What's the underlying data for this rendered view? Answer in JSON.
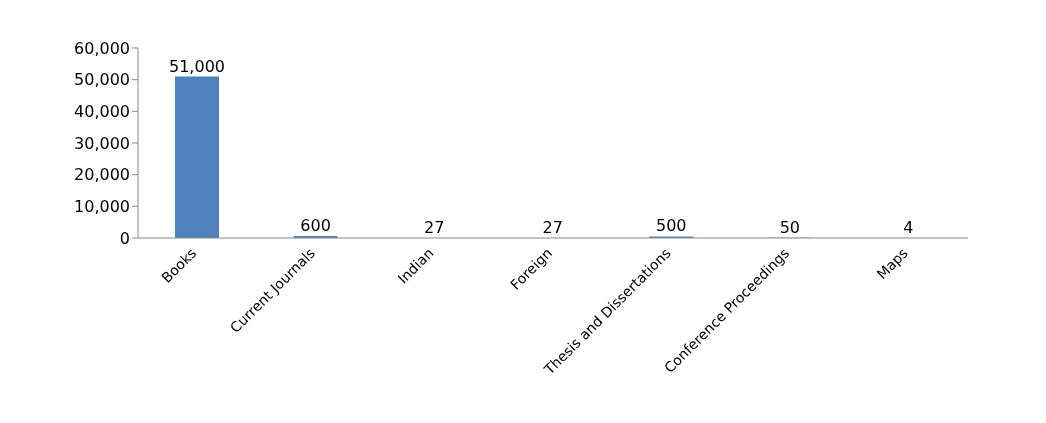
{
  "chart_data": {
    "type": "bar",
    "categories": [
      "Books",
      "Current Journals",
      "Indian",
      "Foreign",
      "Thesis and Dissertations",
      "Conference Proceedings",
      "Maps"
    ],
    "values": [
      51000,
      600,
      27,
      27,
      500,
      50,
      4
    ],
    "value_labels": [
      "51,000",
      "600",
      "27",
      "27",
      "500",
      "50",
      "4"
    ],
    "color": "#4f81bd",
    "ylim": [
      0,
      60000
    ],
    "yticks": [
      {
        "value": 0,
        "label": "0"
      },
      {
        "value": 10000,
        "label": "10,000"
      },
      {
        "value": 20000,
        "label": "20,000"
      },
      {
        "value": 30000,
        "label": "30,000"
      },
      {
        "value": 40000,
        "label": "40,000"
      },
      {
        "value": 50000,
        "label": "50,000"
      },
      {
        "value": 60000,
        "label": "60,000"
      }
    ]
  }
}
